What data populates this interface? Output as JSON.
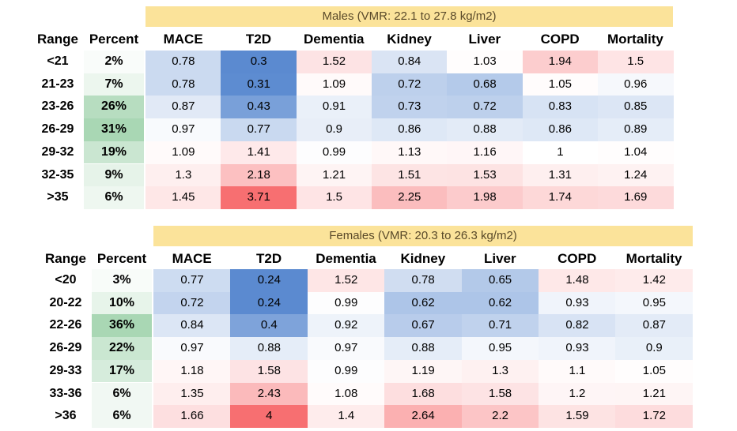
{
  "chart_data": [
    {
      "type": "table",
      "title": "Males (VMR: 22.1 to 27.8 kg/m2)",
      "columns": [
        "Range",
        "Percent",
        "MACE",
        "T2D",
        "Dementia",
        "Kidney",
        "Liver",
        "COPD",
        "Mortality"
      ],
      "rows": [
        {
          "range": "<21",
          "percent": "2%",
          "percent_value": 2,
          "values": [
            0.78,
            0.3,
            1.52,
            0.84,
            1.03,
            1.94,
            1.5
          ]
        },
        {
          "range": "21-23",
          "percent": "7%",
          "percent_value": 7,
          "values": [
            0.78,
            0.31,
            1.09,
            0.72,
            0.68,
            1.05,
            0.96
          ]
        },
        {
          "range": "23-26",
          "percent": "26%",
          "percent_value": 26,
          "values": [
            0.87,
            0.43,
            0.91,
            0.73,
            0.72,
            0.83,
            0.85
          ]
        },
        {
          "range": "26-29",
          "percent": "31%",
          "percent_value": 31,
          "values": [
            0.97,
            0.77,
            0.9,
            0.86,
            0.88,
            0.86,
            0.89
          ]
        },
        {
          "range": "29-32",
          "percent": "19%",
          "percent_value": 19,
          "values": [
            1.09,
            1.41,
            0.99,
            1.13,
            1.16,
            1,
            1.04
          ]
        },
        {
          "range": "32-35",
          "percent": "9%",
          "percent_value": 9,
          "values": [
            1.3,
            2.18,
            1.21,
            1.51,
            1.53,
            1.31,
            1.24
          ]
        },
        {
          "range": ">35",
          "percent": "6%",
          "percent_value": 6,
          "values": [
            1.45,
            3.71,
            1.5,
            2.25,
            1.98,
            1.74,
            1.69
          ]
        }
      ]
    },
    {
      "type": "table",
      "title": "Females (VMR: 20.3 to 26.3 kg/m2)",
      "columns": [
        "Range",
        "Percent",
        "MACE",
        "T2D",
        "Dementia",
        "Kidney",
        "Liver",
        "COPD",
        "Mortality"
      ],
      "rows": [
        {
          "range": "<20",
          "percent": "3%",
          "percent_value": 3,
          "values": [
            0.77,
            0.24,
            1.52,
            0.78,
            0.65,
            1.48,
            1.42
          ]
        },
        {
          "range": "20-22",
          "percent": "10%",
          "percent_value": 10,
          "values": [
            0.72,
            0.24,
            0.99,
            0.62,
            0.62,
            0.93,
            0.95
          ]
        },
        {
          "range": "22-26",
          "percent": "36%",
          "percent_value": 36,
          "values": [
            0.84,
            0.4,
            0.92,
            0.67,
            0.71,
            0.82,
            0.87
          ]
        },
        {
          "range": "26-29",
          "percent": "22%",
          "percent_value": 22,
          "values": [
            0.97,
            0.88,
            0.97,
            0.88,
            0.95,
            0.93,
            0.9
          ]
        },
        {
          "range": "29-33",
          "percent": "17%",
          "percent_value": 17,
          "values": [
            1.18,
            1.58,
            0.99,
            1.19,
            1.3,
            1.1,
            1.05
          ]
        },
        {
          "range": "33-36",
          "percent": "6%",
          "percent_value": 6,
          "values": [
            1.35,
            2.43,
            1.08,
            1.68,
            1.58,
            1.2,
            1.21
          ]
        },
        {
          "range": ">36",
          "percent": "6%",
          "percent_value": 6,
          "values": [
            1.66,
            4,
            1.4,
            2.64,
            2.2,
            1.59,
            1.72
          ]
        }
      ]
    }
  ],
  "colors": {
    "blue_strong": "#5b8ad0",
    "white": "#ffffff",
    "red_strong": "#f76f71",
    "green_strong": "#a9d7b4",
    "banner": "#fbe39a"
  }
}
